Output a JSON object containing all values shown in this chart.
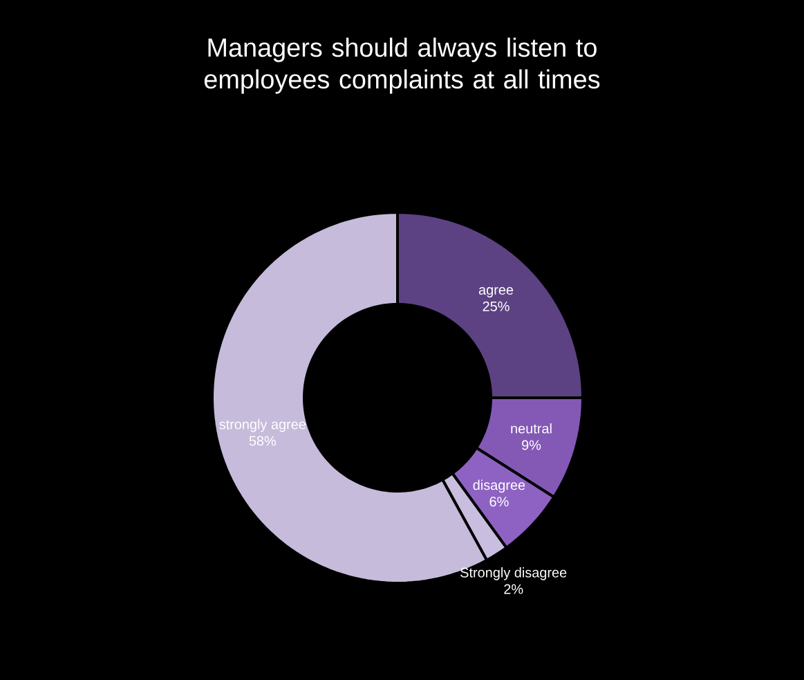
{
  "chart_data": {
    "type": "donut",
    "title": "Managers should always listen to employees complaints at all times",
    "categories": [
      "agree",
      "neutral",
      "disagree",
      "Strongly disagree",
      "strongly agree"
    ],
    "values": [
      25,
      9,
      6,
      2,
      58
    ],
    "value_labels": [
      "25%",
      "9%",
      "6%",
      "2%",
      "58%"
    ],
    "colors": [
      "#5c4283",
      "#8459b5",
      "#8e62c3",
      "#c9bde0",
      "#c6bbdb"
    ]
  }
}
